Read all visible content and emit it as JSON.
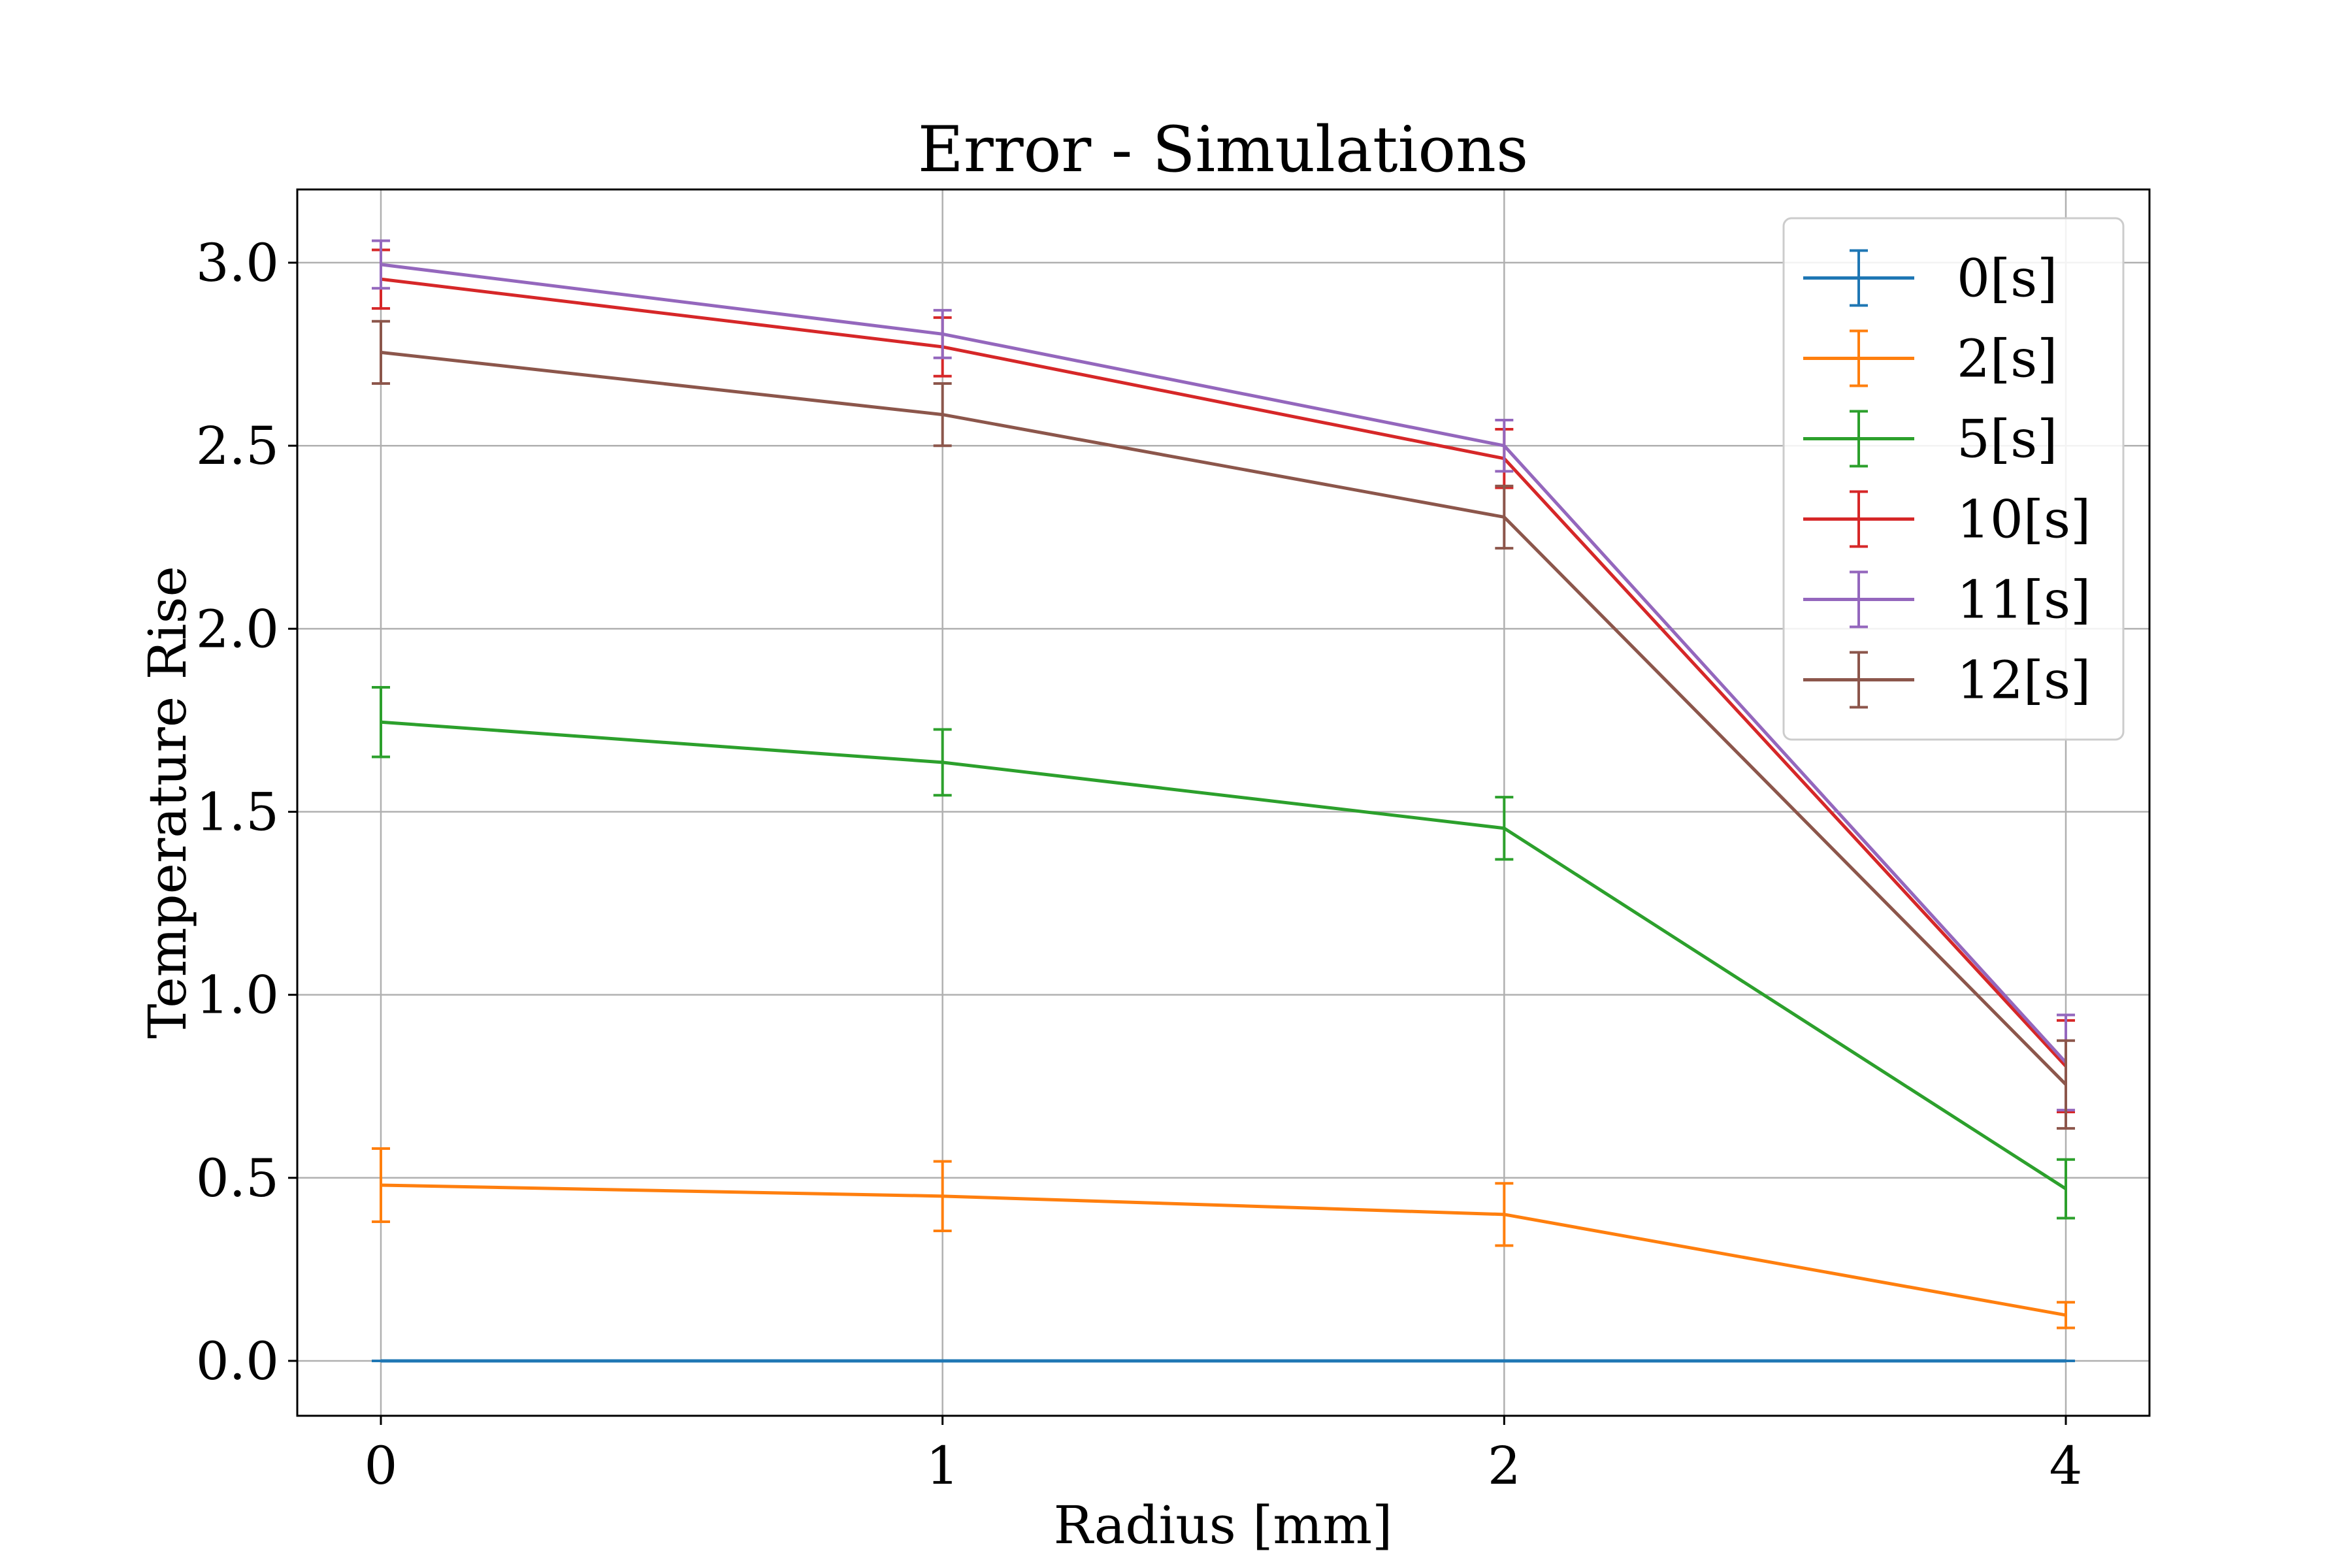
{
  "chart_data": {
    "type": "line",
    "title": "Error - Simulations",
    "xlabel": "Radius [mm]",
    "ylabel": "Temperature Rise",
    "categories": [
      "0",
      "1",
      "2",
      "4"
    ],
    "yticks": [
      "0.0",
      "0.5",
      "1.0",
      "1.5",
      "2.0",
      "2.5",
      "3.0"
    ],
    "ylim": [
      -0.15,
      3.2
    ],
    "grid": true,
    "legend_position": "top-right",
    "series": [
      {
        "name": "0[s]",
        "color": "#1f77b4",
        "values": [
          0.0,
          0.0,
          0.0,
          0.0
        ],
        "errors": [
          0.0,
          0.0,
          0.0,
          0.0
        ]
      },
      {
        "name": "2[s]",
        "color": "#ff7f0e",
        "values": [
          0.48,
          0.45,
          0.4,
          0.125
        ],
        "errors": [
          0.1,
          0.095,
          0.085,
          0.035
        ]
      },
      {
        "name": "5[s]",
        "color": "#2ca02c",
        "values": [
          1.745,
          1.635,
          1.455,
          0.47
        ],
        "errors": [
          0.095,
          0.09,
          0.085,
          0.08
        ]
      },
      {
        "name": "10[s]",
        "color": "#d62728",
        "values": [
          2.955,
          2.77,
          2.465,
          0.805
        ],
        "errors": [
          0.08,
          0.08,
          0.08,
          0.125
        ]
      },
      {
        "name": "11[s]",
        "color": "#9467bd",
        "values": [
          2.995,
          2.805,
          2.5,
          0.815
        ],
        "errors": [
          0.065,
          0.065,
          0.07,
          0.13
        ]
      },
      {
        "name": "12[s]",
        "color": "#8c564b",
        "values": [
          2.755,
          2.585,
          2.305,
          0.755
        ],
        "errors": [
          0.085,
          0.085,
          0.085,
          0.12
        ]
      }
    ]
  }
}
